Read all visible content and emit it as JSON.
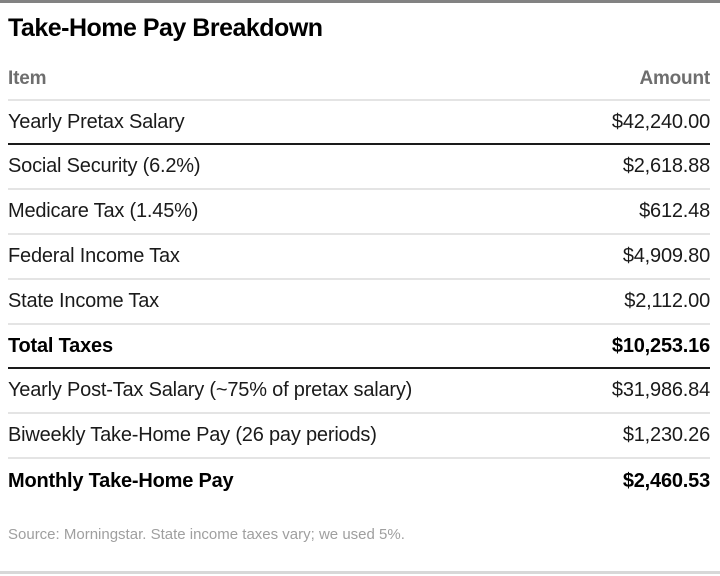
{
  "title": "Take-Home Pay Breakdown",
  "chart_data": {
    "type": "table",
    "title": "Take-Home Pay Breakdown",
    "columns": [
      "Item",
      "Amount"
    ],
    "rows": [
      {
        "item": "Yearly Pretax Salary",
        "amount": "$42,240.00",
        "emphasis": false,
        "divider_below": "dark"
      },
      {
        "item": "Social Security (6.2%)",
        "amount": "$2,618.88",
        "emphasis": false,
        "divider_below": "light"
      },
      {
        "item": "Medicare Tax (1.45%)",
        "amount": "$612.48",
        "emphasis": false,
        "divider_below": "light"
      },
      {
        "item": "Federal Income Tax",
        "amount": "$4,909.80",
        "emphasis": false,
        "divider_below": "light"
      },
      {
        "item": "State Income Tax",
        "amount": "$2,112.00",
        "emphasis": false,
        "divider_below": "light"
      },
      {
        "item": "Total Taxes",
        "amount": "$10,253.16",
        "emphasis": true,
        "divider_below": "dark"
      },
      {
        "item": "Yearly Post-Tax Salary (~75% of pretax salary)",
        "amount": "$31,986.84",
        "emphasis": false,
        "divider_below": "light"
      },
      {
        "item": "Biweekly Take-Home Pay (26 pay periods)",
        "amount": "$1,230.26",
        "emphasis": false,
        "divider_below": "light"
      },
      {
        "item": "Monthly Take-Home Pay",
        "amount": "$2,460.53",
        "emphasis": true,
        "divider_below": "none"
      }
    ],
    "source": "Source: Morningstar. State income taxes vary; we used 5%."
  },
  "colors": {
    "top_bar": "#828282",
    "bottom_bar": "#d8d8d8",
    "heavy_rule": "#1a1a1a",
    "light_rule": "#e4e4e4",
    "header_text": "#6e6e6e",
    "body_text": "#1a1a1a",
    "footnote_text": "#9f9f9f"
  }
}
